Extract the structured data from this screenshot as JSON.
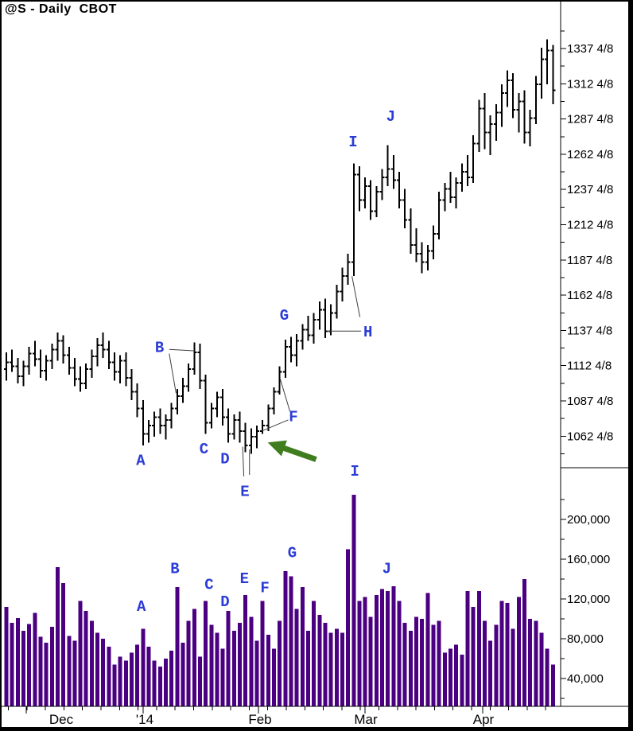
{
  "window": {
    "title": "@S - Daily  CBOT"
  },
  "colors": {
    "background": "#FFFFFF",
    "price_bar": "#000000",
    "volume_bar": "#4B0082",
    "letter_blue": "#2B3BD6",
    "arrow_green": "#3F7D1E",
    "pointer_line": "#3F3F3F",
    "axis": "#000000"
  },
  "chart_data": {
    "type": "bar",
    "subtype": "ohlc-with-volume",
    "title": "@S - Daily  CBOT",
    "symbol": "@S",
    "interval": "Daily",
    "exchange": "CBOT",
    "price_axis": {
      "side": "right",
      "range": [
        1040,
        1357
      ],
      "labels": [
        {
          "value": 1337.5,
          "text": "1337 4/8"
        },
        {
          "value": 1312.5,
          "text": "1312 4/8"
        },
        {
          "value": 1287.5,
          "text": "1287 4/8"
        },
        {
          "value": 1262.5,
          "text": "1262 4/8"
        },
        {
          "value": 1237.5,
          "text": "1237 4/8"
        },
        {
          "value": 1212.5,
          "text": "1212 4/8"
        },
        {
          "value": 1187.5,
          "text": "1187 4/8"
        },
        {
          "value": 1162.5,
          "text": "1162 4/8"
        },
        {
          "value": 1137.5,
          "text": "1137 4/8"
        },
        {
          "value": 1112.5,
          "text": "1112 4/8"
        },
        {
          "value": 1087.5,
          "text": "1087 4/8"
        },
        {
          "value": 1062.5,
          "text": "1062 4/8"
        }
      ],
      "minor_tick_values": [
        1350,
        1325,
        1300,
        1275,
        1250,
        1225,
        1200,
        1175,
        1150,
        1125,
        1100,
        1075,
        1050
      ]
    },
    "volume_axis": {
      "side": "right",
      "range": [
        12000,
        250000
      ],
      "labels": [
        {
          "value": 200000,
          "text": "200,000"
        },
        {
          "value": 160000,
          "text": "160,000"
        },
        {
          "value": 120000,
          "text": "120,000"
        },
        {
          "value": 80000,
          "text": "80,000"
        },
        {
          "value": 40000,
          "text": "40,000"
        }
      ],
      "minor_tick_values": [
        220000,
        180000,
        140000,
        100000,
        60000,
        20000
      ]
    },
    "x_axis": {
      "months": [
        {
          "label": "Dec",
          "tick_x": 33,
          "label_x": 77
        },
        {
          "label": "'14",
          "tick_x": 180,
          "label_x": 182
        },
        {
          "label": "Feb",
          "tick_x": 325,
          "label_x": 327
        },
        {
          "label": "Mar",
          "tick_x": 459,
          "label_x": 460
        },
        {
          "label": "Apr",
          "tick_x": 607,
          "label_x": 608
        }
      ],
      "minor_tick_start": 10.5,
      "minor_tick_spacing": 23.3,
      "minor_tick_count": 30
    },
    "ohlc": [
      [
        1110,
        1122,
        1102,
        1115
      ],
      [
        1115,
        1124,
        1108,
        1112
      ],
      [
        1112,
        1118,
        1100,
        1105
      ],
      [
        1105,
        1116,
        1098,
        1112
      ],
      [
        1112,
        1126,
        1106,
        1121
      ],
      [
        1121,
        1130,
        1112,
        1117
      ],
      [
        1117,
        1124,
        1104,
        1109
      ],
      [
        1109,
        1120,
        1102,
        1116
      ],
      [
        1116,
        1128,
        1110,
        1124
      ],
      [
        1124,
        1136,
        1116,
        1130
      ],
      [
        1130,
        1134,
        1114,
        1120
      ],
      [
        1120,
        1126,
        1106,
        1111
      ],
      [
        1111,
        1118,
        1098,
        1103
      ],
      [
        1103,
        1112,
        1094,
        1100
      ],
      [
        1100,
        1114,
        1096,
        1110
      ],
      [
        1110,
        1124,
        1104,
        1119
      ],
      [
        1119,
        1132,
        1112,
        1127
      ],
      [
        1127,
        1136,
        1118,
        1124
      ],
      [
        1124,
        1130,
        1110,
        1115
      ],
      [
        1115,
        1122,
        1102,
        1108
      ],
      [
        1108,
        1120,
        1100,
        1116
      ],
      [
        1116,
        1122,
        1098,
        1104
      ],
      [
        1104,
        1110,
        1088,
        1094
      ],
      [
        1094,
        1100,
        1076,
        1082
      ],
      [
        1082,
        1088,
        1056,
        1064
      ],
      [
        1064,
        1074,
        1058,
        1070
      ],
      [
        1070,
        1080,
        1062,
        1076
      ],
      [
        1076,
        1082,
        1064,
        1070
      ],
      [
        1070,
        1078,
        1060,
        1074
      ],
      [
        1074,
        1086,
        1068,
        1082
      ],
      [
        1082,
        1096,
        1078,
        1091
      ],
      [
        1091,
        1104,
        1086,
        1098
      ],
      [
        1098,
        1114,
        1094,
        1110
      ],
      [
        1110,
        1129,
        1106,
        1122
      ],
      [
        1122,
        1128,
        1096,
        1102
      ],
      [
        1102,
        1106,
        1064,
        1072
      ],
      [
        1072,
        1086,
        1068,
        1082
      ],
      [
        1082,
        1094,
        1076,
        1090
      ],
      [
        1090,
        1096,
        1070,
        1076
      ],
      [
        1076,
        1082,
        1058,
        1064
      ],
      [
        1064,
        1078,
        1060,
        1074
      ],
      [
        1074,
        1080,
        1058,
        1066
      ],
      [
        1066,
        1072,
        1051,
        1056
      ],
      [
        1056,
        1068,
        1050,
        1062
      ],
      [
        1062,
        1070,
        1054,
        1066
      ],
      [
        1066,
        1074,
        1064,
        1070
      ],
      [
        1070,
        1085,
        1066,
        1082
      ],
      [
        1082,
        1097,
        1078,
        1094
      ],
      [
        1094,
        1112,
        1092,
        1108
      ],
      [
        1108,
        1131,
        1104,
        1126
      ],
      [
        1126,
        1133,
        1115,
        1120
      ],
      [
        1120,
        1135,
        1112,
        1130
      ],
      [
        1130,
        1142,
        1124,
        1138
      ],
      [
        1138,
        1148,
        1130,
        1134
      ],
      [
        1134,
        1150,
        1128,
        1145
      ],
      [
        1145,
        1158,
        1138,
        1152
      ],
      [
        1152,
        1160,
        1132,
        1137
      ],
      [
        1137,
        1156,
        1134,
        1150
      ],
      [
        1150,
        1170,
        1146,
        1165
      ],
      [
        1165,
        1182,
        1158,
        1176
      ],
      [
        1176,
        1192,
        1170,
        1186
      ],
      [
        1186,
        1256,
        1176,
        1248
      ],
      [
        1248,
        1254,
        1222,
        1230
      ],
      [
        1230,
        1246,
        1224,
        1240
      ],
      [
        1240,
        1244,
        1216,
        1222
      ],
      [
        1222,
        1240,
        1218,
        1236
      ],
      [
        1236,
        1252,
        1230,
        1246
      ],
      [
        1246,
        1269,
        1240,
        1252
      ],
      [
        1252,
        1262,
        1238,
        1244
      ],
      [
        1244,
        1250,
        1224,
        1230
      ],
      [
        1230,
        1238,
        1210,
        1216
      ],
      [
        1216,
        1224,
        1192,
        1198
      ],
      [
        1198,
        1210,
        1186,
        1192
      ],
      [
        1192,
        1200,
        1178,
        1186
      ],
      [
        1186,
        1198,
        1180,
        1194
      ],
      [
        1194,
        1212,
        1188,
        1206
      ],
      [
        1206,
        1236,
        1202,
        1230
      ],
      [
        1230,
        1242,
        1222,
        1238
      ],
      [
        1238,
        1250,
        1228,
        1232
      ],
      [
        1232,
        1246,
        1224,
        1242
      ],
      [
        1242,
        1256,
        1236,
        1250
      ],
      [
        1250,
        1262,
        1240,
        1246
      ],
      [
        1246,
        1276,
        1242,
        1270
      ],
      [
        1270,
        1301,
        1264,
        1295
      ],
      [
        1295,
        1306,
        1266,
        1278
      ],
      [
        1278,
        1290,
        1262,
        1284
      ],
      [
        1284,
        1298,
        1272,
        1292
      ],
      [
        1292,
        1312,
        1282,
        1306
      ],
      [
        1306,
        1322,
        1296,
        1315
      ],
      [
        1315,
        1320,
        1288,
        1294
      ],
      [
        1294,
        1306,
        1278,
        1300
      ],
      [
        1300,
        1308,
        1270,
        1278
      ],
      [
        1278,
        1294,
        1268,
        1288
      ],
      [
        1288,
        1318,
        1284,
        1312
      ],
      [
        1312,
        1338,
        1302,
        1330
      ],
      [
        1330,
        1344,
        1312,
        1336
      ],
      [
        1336,
        1340,
        1298,
        1308
      ]
    ],
    "volume": [
      112000,
      96000,
      101000,
      88000,
      95000,
      106000,
      82000,
      76000,
      92000,
      152000,
      136000,
      83000,
      78000,
      118000,
      108000,
      98000,
      86000,
      80000,
      72000,
      54000,
      62000,
      58000,
      66000,
      74000,
      90000,
      72000,
      58000,
      52000,
      60000,
      68000,
      132000,
      76000,
      98000,
      110000,
      62000,
      118000,
      94000,
      86000,
      70000,
      108000,
      88000,
      96000,
      124000,
      102000,
      78000,
      118000,
      84000,
      70000,
      98000,
      148000,
      143000,
      110000,
      132000,
      88000,
      118000,
      104000,
      96000,
      86000,
      90000,
      86000,
      170000,
      225000,
      118000,
      122000,
      102000,
      124000,
      130000,
      128000,
      133000,
      118000,
      96000,
      88000,
      102000,
      100000,
      126000,
      94000,
      98000,
      66000,
      70000,
      74000,
      64000,
      128000,
      112000,
      128000,
      98000,
      78000,
      94000,
      118000,
      116000,
      90000,
      122000,
      140000,
      100000,
      98000,
      86000,
      70000,
      54000
    ],
    "annotations": {
      "price_letters": [
        {
          "label": "A",
          "index": 23.6,
          "price": 1045
        },
        {
          "label": "B",
          "index": 26.9,
          "price": 1125
        },
        {
          "label": "C",
          "index": 34.7,
          "price": 1053
        },
        {
          "label": "D",
          "index": 38.4,
          "price": 1046
        },
        {
          "label": "E",
          "index": 41.9,
          "price": 1023
        },
        {
          "label": "F",
          "index": 50.4,
          "price": 1076
        },
        {
          "label": "G",
          "index": 48.8,
          "price": 1148
        },
        {
          "label": "H",
          "index": 63.5,
          "price": 1136
        },
        {
          "label": "I",
          "index": 60.9,
          "price": 1271
        },
        {
          "label": "J",
          "index": 67.5,
          "price": 1289
        }
      ],
      "volume_letters": [
        {
          "label": "A",
          "index": 23.7,
          "volume": 112000
        },
        {
          "label": "B",
          "index": 29.6,
          "volume": 150000
        },
        {
          "label": "C",
          "index": 35.6,
          "volume": 134000
        },
        {
          "label": "D",
          "index": 38.4,
          "volume": 117000
        },
        {
          "label": "E",
          "index": 41.8,
          "volume": 140000
        },
        {
          "label": "F",
          "index": 45.4,
          "volume": 131000
        },
        {
          "label": "G",
          "index": 50.2,
          "volume": 166000
        },
        {
          "label": "I",
          "index": 61.2,
          "volume": 248000
        },
        {
          "label": "J",
          "index": 66.8,
          "volume": 150000
        }
      ],
      "pointer_lines": [
        {
          "x1": 28.6,
          "p1": 1121,
          "x2": 29.8,
          "p2": 1093
        },
        {
          "x1": 28.6,
          "p1": 1124,
          "x2": 33.2,
          "p2": 1123
        },
        {
          "x1": 41.5,
          "p1": 1055,
          "x2": 41.7,
          "p2": 1034
        },
        {
          "x1": 42.7,
          "p1": 1053,
          "x2": 42.7,
          "p2": 1035
        },
        {
          "x1": 49.5,
          "p1": 1074,
          "x2": 44.8,
          "p2": 1066
        },
        {
          "x1": 49.8,
          "p1": 1080,
          "x2": 48.1,
          "p2": 1103
        },
        {
          "x1": 62.1,
          "p1": 1147,
          "x2": 60.7,
          "p2": 1176
        },
        {
          "x1": 62.3,
          "p1": 1137,
          "x2": 56.5,
          "p2": 1137
        }
      ],
      "arrow": {
        "tail": {
          "index": 54.4,
          "price": 1046
        },
        "tip": {
          "index": 45.9,
          "price": 1058
        }
      }
    }
  }
}
